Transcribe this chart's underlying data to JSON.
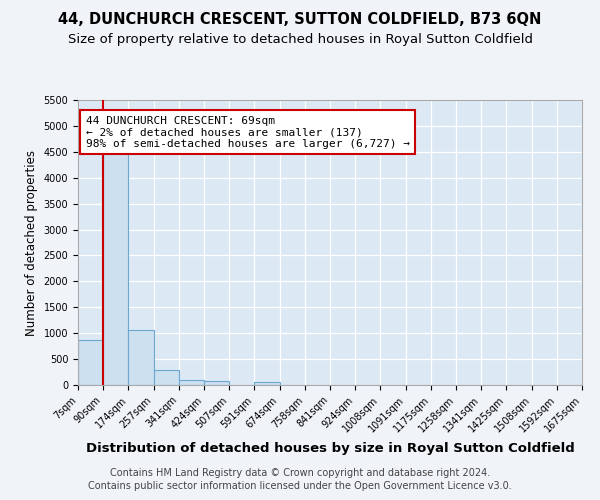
{
  "title1": "44, DUNCHURCH CRESCENT, SUTTON COLDFIELD, B73 6QN",
  "title2": "Size of property relative to detached houses in Royal Sutton Coldfield",
  "xlabel": "Distribution of detached houses by size in Royal Sutton Coldfield",
  "ylabel": "Number of detached properties",
  "footer1": "Contains HM Land Registry data © Crown copyright and database right 2024.",
  "footer2": "Contains public sector information licensed under the Open Government Licence v3.0.",
  "bin_labels": [
    "7sqm",
    "90sqm",
    "174sqm",
    "257sqm",
    "341sqm",
    "424sqm",
    "507sqm",
    "591sqm",
    "674sqm",
    "758sqm",
    "841sqm",
    "924sqm",
    "1008sqm",
    "1091sqm",
    "1175sqm",
    "1258sqm",
    "1341sqm",
    "1425sqm",
    "1508sqm",
    "1592sqm",
    "1675sqm"
  ],
  "values": [
    875,
    4600,
    1070,
    290,
    95,
    70,
    0,
    55,
    0,
    0,
    0,
    0,
    0,
    0,
    0,
    0,
    0,
    0,
    0,
    0
  ],
  "bar_color": "#cce0f0",
  "bar_edge_color": "#6aa8d0",
  "property_line_color": "#cc0000",
  "annotation_line1": "44 DUNCHURCH CRESCENT: 69sqm",
  "annotation_line2": "← 2% of detached houses are smaller (137)",
  "annotation_line3": "98% of semi-detached houses are larger (6,727) →",
  "annotation_box_color": "#ffffff",
  "annotation_border_color": "#cc0000",
  "ylim": [
    0,
    5500
  ],
  "yticks": [
    0,
    500,
    1000,
    1500,
    2000,
    2500,
    3000,
    3500,
    4000,
    4500,
    5000,
    5500
  ],
  "plot_background": "#dce9f5",
  "grid_color": "#ffffff",
  "fig_background": "#f0f4f8",
  "title1_fontsize": 10.5,
  "title2_fontsize": 9.5,
  "xlabel_fontsize": 9.5,
  "ylabel_fontsize": 8.5,
  "tick_fontsize": 7.0,
  "annotation_fontsize": 8.0,
  "footer_fontsize": 7.0
}
